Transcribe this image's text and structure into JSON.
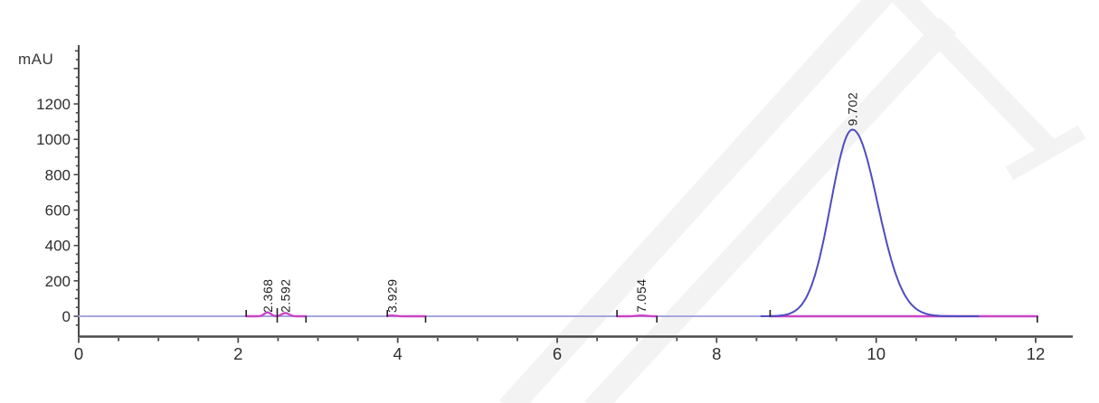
{
  "chart_data": {
    "type": "line",
    "title": "",
    "xlabel": "",
    "ylabel": "mAU",
    "x_tick_labels": [
      "0",
      "2",
      "4",
      "6",
      "8",
      "10",
      "12"
    ],
    "x_ticks": [
      0,
      2,
      4,
      6,
      8,
      10,
      12
    ],
    "x_minor_step": 0.5,
    "y_tick_labels": [
      "0",
      "200",
      "400",
      "600",
      "800",
      "1000",
      "1200"
    ],
    "y_ticks": [
      0,
      200,
      400,
      600,
      800,
      1000,
      1200
    ],
    "y_minor_step": 50,
    "xlim": [
      0,
      12.45
    ],
    "ylim": [
      -100,
      1530
    ],
    "grid": false,
    "legend": false,
    "peaks": [
      {
        "label": "2.368",
        "rt": 2.368,
        "height_mau": 22,
        "sigma": 0.04
      },
      {
        "label": "2.592",
        "rt": 2.592,
        "height_mau": 18,
        "sigma": 0.045
      },
      {
        "label": "3.929",
        "rt": 3.929,
        "height_mau": 4,
        "sigma": 0.05
      },
      {
        "label": "7.054",
        "rt": 7.054,
        "height_mau": 4,
        "sigma": 0.06
      },
      {
        "label": "9.702",
        "rt": 9.702,
        "height_mau": 1055,
        "sigma": 0.27,
        "sigma_right": 0.315,
        "major": true
      }
    ],
    "integration_segments": [
      {
        "start": 2.1,
        "end": 2.85,
        "mid_tick": 2.49
      },
      {
        "start": 3.87,
        "end": 4.35
      },
      {
        "start": 6.75,
        "end": 7.25
      },
      {
        "start": 8.67,
        "end": 12.02
      }
    ],
    "colors": {
      "signal_peak": "#4d4dc0",
      "signal_baseline": "#a6a6de",
      "integration_baseline": "#c845c8",
      "axis": "#4a4a4a",
      "tick_label": "#2f2f2f",
      "peak_label": "#1f1f1f",
      "boundary_tick": "#222222",
      "watermark": "#f3f3f3",
      "background": "#ffffff"
    }
  }
}
